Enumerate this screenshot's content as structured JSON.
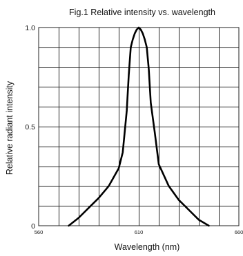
{
  "chart_data": {
    "type": "line",
    "title": "Fig.1 Relative intensity vs. wavelength",
    "xlabel": "Wavelength (nm)",
    "ylabel": "Relative radiant intensity",
    "xlim": [
      560,
      660
    ],
    "ylim": [
      0,
      1.0
    ],
    "x_ticks": [
      560,
      610,
      660
    ],
    "x_tick_labels": [
      "560",
      "610",
      "660"
    ],
    "y_ticks": [
      0,
      0.5,
      1.0
    ],
    "y_tick_labels": [
      "0",
      "0.5",
      "1.0"
    ],
    "grid": true,
    "grid_divisions": {
      "x": 10,
      "y": 10
    },
    "legend": "none",
    "series": [
      {
        "color": "#000000",
        "x": [
          575,
          580,
          585,
          590,
          595,
          600,
          602,
          604,
          605,
          606,
          607,
          608,
          609,
          610,
          611,
          612,
          613,
          614,
          615,
          616,
          618,
          620,
          625,
          630,
          635,
          640,
          645
        ],
        "y": [
          0.0,
          0.04,
          0.09,
          0.14,
          0.2,
          0.29,
          0.37,
          0.58,
          0.76,
          0.9,
          0.94,
          0.97,
          0.99,
          1.0,
          0.99,
          0.97,
          0.94,
          0.9,
          0.79,
          0.62,
          0.47,
          0.31,
          0.2,
          0.13,
          0.08,
          0.03,
          0.0
        ]
      }
    ]
  }
}
